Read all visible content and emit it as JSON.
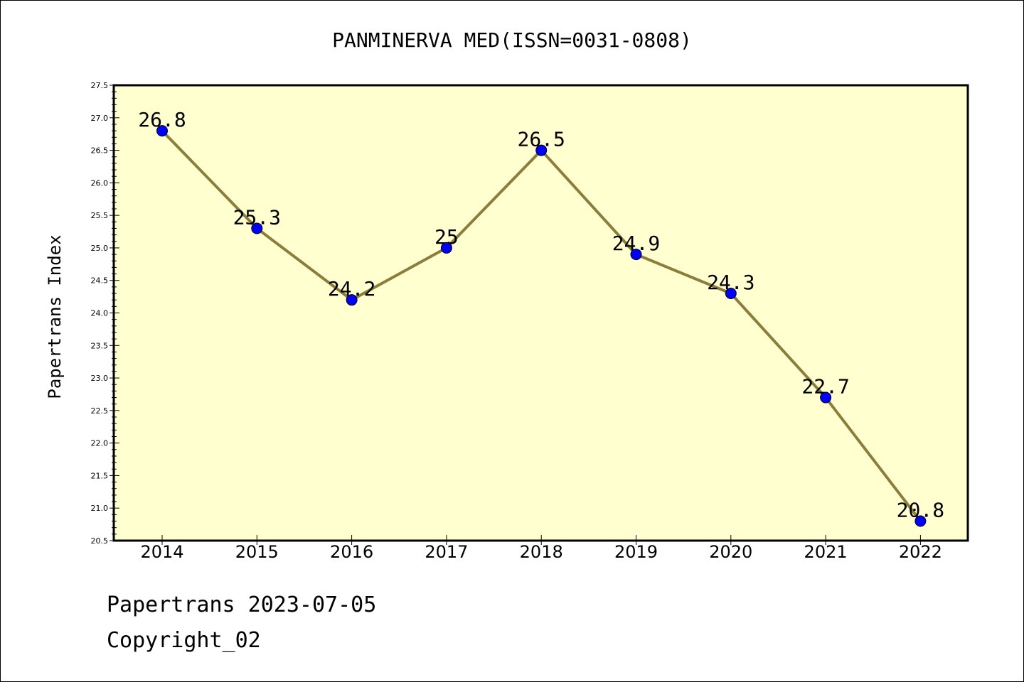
{
  "chart_data": {
    "type": "line",
    "title": "PANMINERVA MED(ISSN=0031-0808)",
    "xlabel": "",
    "ylabel": "Papertrans Index",
    "categories": [
      "2014",
      "2015",
      "2016",
      "2017",
      "2018",
      "2019",
      "2020",
      "2021",
      "2022"
    ],
    "series": [
      {
        "values": [
          26.8,
          25.3,
          24.2,
          25,
          26.5,
          24.9,
          24.3,
          22.7,
          20.8
        ],
        "labels": [
          "26.8",
          "25.3",
          "24.2",
          "25",
          "26.5",
          "24.9",
          "24.3",
          "22.7",
          "20.8"
        ]
      }
    ],
    "ylim": [
      20.5,
      27.5
    ],
    "yticks": [
      "20.5",
      "21.0",
      "21.5",
      "22.0",
      "22.5",
      "23.0",
      "23.5",
      "24.0",
      "24.5",
      "25.0",
      "25.5",
      "26.0",
      "26.5",
      "27.0",
      "27.5"
    ],
    "grid": false,
    "legend": "none",
    "colors": {
      "plot_background": "#ffffd0",
      "line": "#8b7d3a",
      "marker": "#0000ff"
    }
  },
  "footer": {
    "date_text": "Papertrans 2023-07-05",
    "copyright_text": "Copyright_02"
  }
}
